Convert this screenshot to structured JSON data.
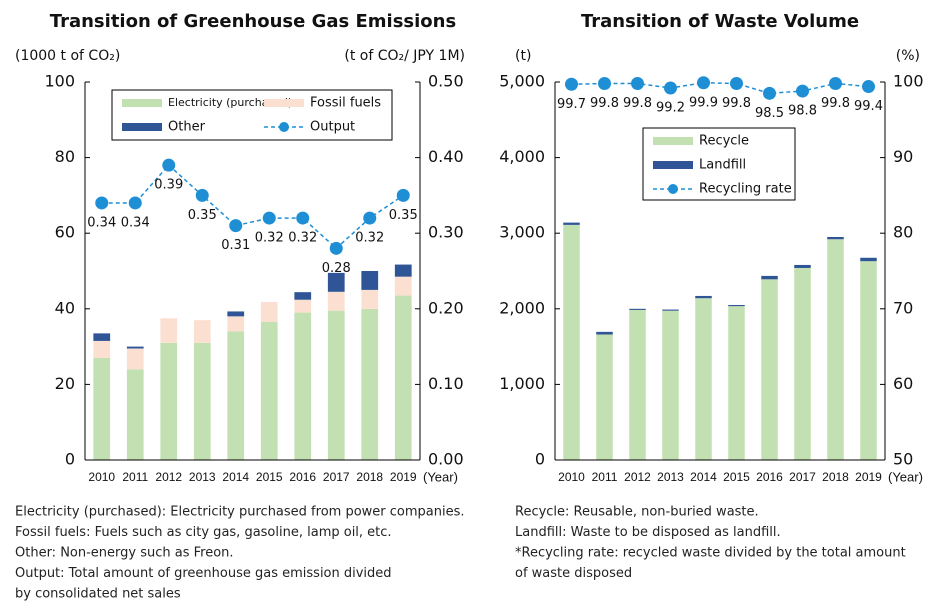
{
  "chart_data": [
    {
      "type": "bar",
      "title": "Transition of Greenhouse Gas Emissions",
      "y_label": "(1000 t of CO₂)",
      "y2_label": "(t of CO₂/ JPY 1M)",
      "x_label": "(Year)",
      "categories": [
        "2010",
        "2011",
        "2012",
        "2013",
        "2014",
        "2015",
        "2016",
        "2017",
        "2018",
        "2019"
      ],
      "series": [
        {
          "name": "Electricity (purchased)",
          "color": "#c3e0b2",
          "values": [
            27,
            24,
            31,
            31,
            34,
            36.5,
            39,
            39.5,
            40,
            43.5
          ]
        },
        {
          "name": "Fossil fuels",
          "color": "#fbe0d2",
          "values": [
            4.5,
            5.5,
            6.5,
            6,
            4,
            5.3,
            3.4,
            5,
            5,
            5
          ]
        },
        {
          "name": "Other",
          "color": "#2f5597",
          "values": [
            2,
            0.5,
            0,
            0,
            1.3,
            0,
            2,
            5,
            5,
            3.2
          ]
        },
        {
          "name": "Output",
          "color": "#1e8fd5",
          "axis": "y2",
          "values": [
            0.34,
            0.34,
            0.39,
            0.35,
            0.31,
            0.32,
            0.32,
            0.28,
            0.32,
            0.35
          ]
        }
      ],
      "ylim": [
        0,
        100
      ],
      "yticks": [
        0,
        20,
        40,
        60,
        80,
        100
      ],
      "y2lim": [
        0,
        0.5
      ],
      "y2ticks": [
        {
          "value": 0,
          "label": "0.00"
        },
        {
          "value": 0.1,
          "label": "0.10"
        },
        {
          "value": 0.2,
          "label": "0.20"
        },
        {
          "value": 0.3,
          "label": "0.30"
        },
        {
          "value": 0.4,
          "label": "0.40"
        },
        {
          "value": 0.5,
          "label": "0.50"
        }
      ],
      "notes": [
        "Electricity (purchased): Electricity purchased from power companies.",
        "Fossil fuels: Fuels such as city gas, gasoline, lamp oil, etc.",
        "Other: Non-energy such as Freon.",
        "Output: Total amount of greenhouse gas emission divided",
        "by consolidated net sales"
      ]
    },
    {
      "type": "bar",
      "title": "Transition of Waste Volume",
      "y_label": "(t)",
      "y2_label": "(%)",
      "x_label": "(Year)",
      "categories": [
        "2010",
        "2011",
        "2012",
        "2013",
        "2014",
        "2015",
        "2016",
        "2017",
        "2018",
        "2019"
      ],
      "series": [
        {
          "name": "Recycle",
          "color": "#c3e0b2",
          "values": [
            3110,
            1660,
            1985,
            1975,
            2140,
            2035,
            2390,
            2540,
            2920,
            2630
          ]
        },
        {
          "name": "Landfill",
          "color": "#2f5597",
          "values": [
            30,
            35,
            15,
            15,
            30,
            15,
            45,
            40,
            30,
            45
          ]
        },
        {
          "name": "Recycling rate",
          "color": "#1e8fd5",
          "axis": "y2",
          "values": [
            99.7,
            99.8,
            99.8,
            99.2,
            99.9,
            99.8,
            98.5,
            98.8,
            99.8,
            99.4
          ]
        }
      ],
      "ylim": [
        0,
        5000
      ],
      "yticks": [
        0,
        {
          "value": 1000,
          "label": "1,000"
        },
        {
          "value": 2000,
          "label": "2,000"
        },
        {
          "value": 3000,
          "label": "3,000"
        },
        {
          "value": 4000,
          "label": "4,000"
        },
        {
          "value": 5000,
          "label": "5,000"
        }
      ],
      "y2lim": [
        50,
        100
      ],
      "y2ticks": [
        50,
        60,
        70,
        80,
        90,
        100
      ],
      "notes": [
        "Recycle: Reusable, non-buried waste.",
        "Landfill: Waste to be disposed as landfill.",
        "*Recycling rate: recycled waste divided by the total amount",
        "of waste disposed"
      ]
    }
  ]
}
